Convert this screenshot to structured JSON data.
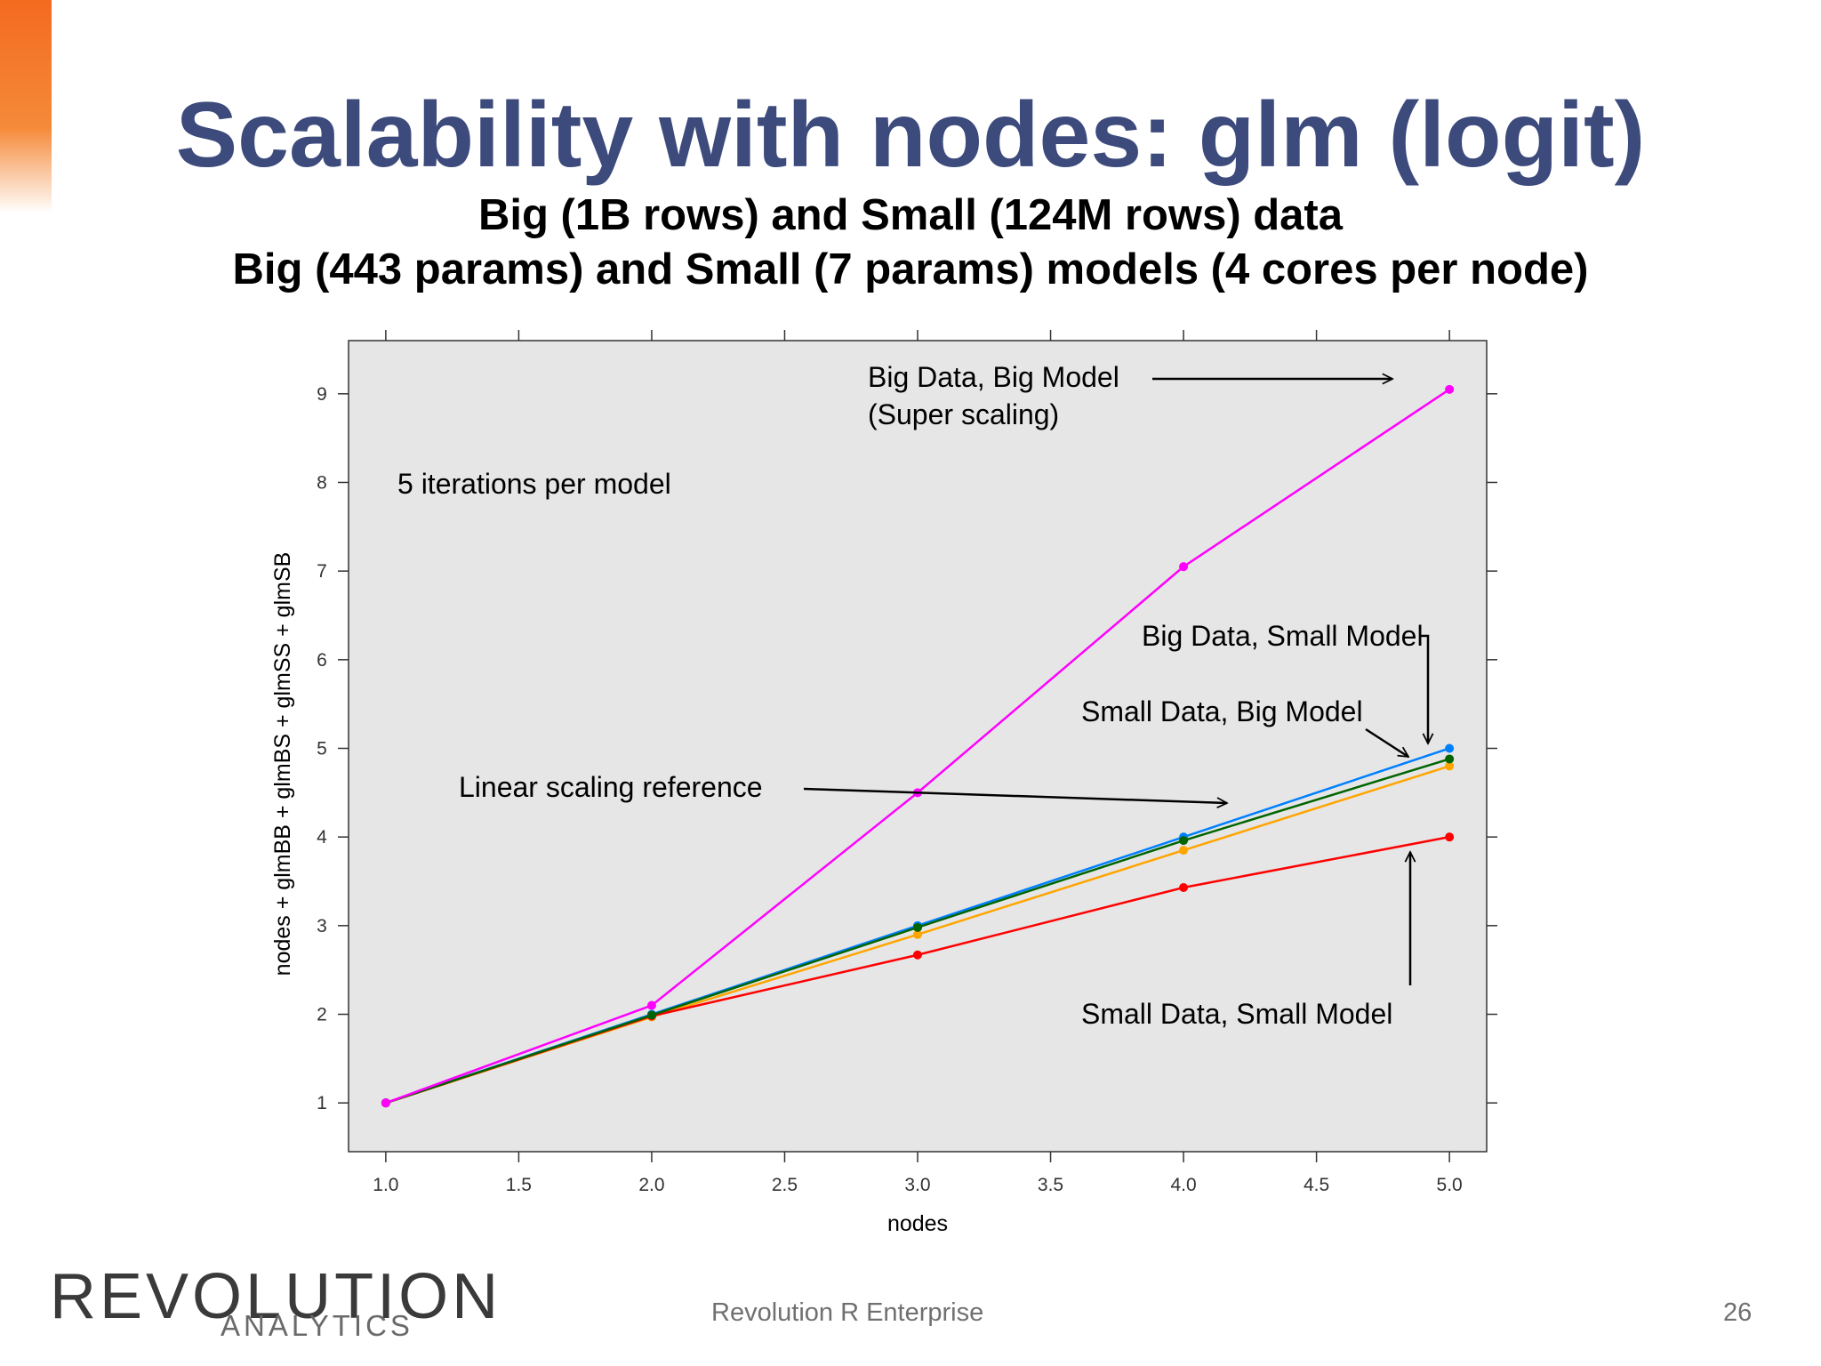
{
  "slide": {
    "title": "Scalability with nodes: glm (logit)",
    "subtitle_line1": "Big (1B rows) and Small (124M rows) data",
    "subtitle_line2": "Big (443 params) and Small (7 params) models (4 cores per node)",
    "footer_center": "Revolution R Enterprise",
    "page_number": "26",
    "logo_text_main": "REVOLUTION",
    "logo_text_sub": "ANALYTICS",
    "colors": {
      "title": "#3c4a7c",
      "accent": "#f46a1f",
      "footer": "#707070"
    }
  },
  "chart_data": {
    "type": "line",
    "xlabel": "nodes",
    "ylabel": "nodes + glmBB + glmBS + glmSS + glmSB",
    "xlim": [
      0.86,
      5.14
    ],
    "ylim": [
      0.45,
      9.6
    ],
    "xticks": [
      "1.0",
      "1.5",
      "2.0",
      "2.5",
      "3.0",
      "3.5",
      "4.0",
      "4.5",
      "5.0"
    ],
    "yticks": [
      "1",
      "2",
      "3",
      "4",
      "5",
      "6",
      "7",
      "8",
      "9"
    ],
    "panel_background": "#e6e6e6",
    "grid": false,
    "x": [
      1,
      2,
      3,
      4,
      5
    ],
    "series": [
      {
        "color": "#0080ff",
        "values": [
          1,
          2.0,
          3.0,
          4.0,
          5.0
        ]
      },
      {
        "color": "#ffa500",
        "values": [
          1,
          1.97,
          2.9,
          3.85,
          4.8
        ]
      },
      {
        "color": "#ff0000",
        "values": [
          1,
          1.98,
          2.67,
          3.43,
          4.0
        ]
      },
      {
        "color": "#006400",
        "values": [
          1,
          1.99,
          2.98,
          3.96,
          4.88
        ]
      },
      {
        "color": "#ff00ff",
        "values": [
          1,
          2.1,
          4.5,
          7.05,
          9.05
        ]
      }
    ],
    "annotations": [
      {
        "text": "Big Data, Big Model",
        "arrow_to": [
          5.0,
          9.05
        ]
      },
      {
        "text": "(Super scaling)"
      },
      {
        "text": "5 iterations per model"
      },
      {
        "text": "Big Data, Small Model",
        "arrow_to": [
          5.0,
          5.0
        ]
      },
      {
        "text": "Small Data, Big Model",
        "arrow_to": [
          5.0,
          4.88
        ]
      },
      {
        "text": "Linear scaling reference",
        "arrow_to": [
          4.25,
          4.38
        ]
      },
      {
        "text": "Small Data, Small Model",
        "arrow_to": [
          5.0,
          4.0
        ]
      }
    ]
  }
}
